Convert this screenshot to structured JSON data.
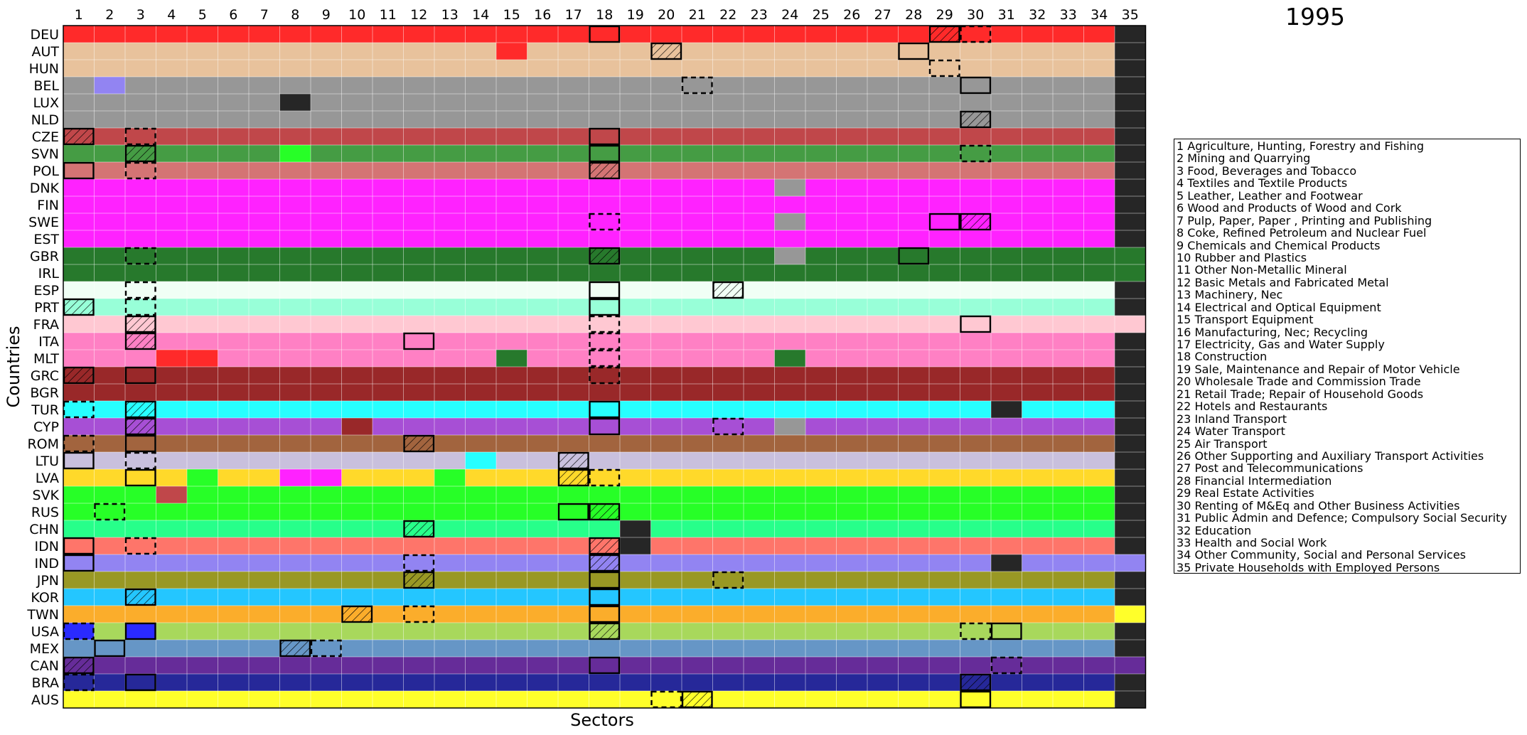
{
  "chart_data": {
    "type": "heatmap",
    "title": "1995",
    "xlabel": "Sectors",
    "ylabel": "Countries",
    "x": [
      "1",
      "2",
      "3",
      "4",
      "5",
      "6",
      "7",
      "8",
      "9",
      "10",
      "11",
      "12",
      "13",
      "14",
      "15",
      "16",
      "17",
      "18",
      "19",
      "20",
      "21",
      "22",
      "23",
      "24",
      "25",
      "26",
      "27",
      "28",
      "29",
      "30",
      "31",
      "32",
      "33",
      "34",
      "35"
    ],
    "y": [
      "DEU",
      "AUT",
      "HUN",
      "BEL",
      "LUX",
      "NLD",
      "CZE",
      "SVN",
      "POL",
      "DNK",
      "FIN",
      "SWE",
      "EST",
      "GBR",
      "IRL",
      "ESP",
      "PRT",
      "FRA",
      "ITA",
      "MLT",
      "GRC",
      "BGR",
      "TUR",
      "CYP",
      "ROM",
      "LTU",
      "LVA",
      "SVK",
      "RUS",
      "CHN",
      "IDN",
      "IND",
      "JPN",
      "KOR",
      "TWN",
      "USA",
      "MEX",
      "CAN",
      "BRA",
      "AUS"
    ],
    "color_scale": "country",
    "grid": true,
    "palette": {
      "DEU": "#ff2a2a",
      "AUT": "#e8c29c",
      "HUN": "#e8c29c",
      "BEL": "#979797",
      "LUX": "#979797",
      "NLD": "#979797",
      "CZE": "#c0474a",
      "SVN": "#459c44",
      "POL": "#d47474",
      "DNK": "#ff22ff",
      "FIN": "#ff22ff",
      "SWE": "#ff22ff",
      "EST": "#ff22ff",
      "GBR": "#27792c",
      "IRL": "#27792c",
      "ESP": "#f0fff5",
      "PRT": "#98ffd8",
      "FRA": "#ffc8d2",
      "ITA": "#ff80c4",
      "MLT": "#ff80c4",
      "GRC": "#992829",
      "BGR": "#992829",
      "TUR": "#27ffff",
      "CYP": "#a74fd5",
      "ROM": "#a2643e",
      "LTU": "#c9c0dd",
      "LVA": "#ffd92a",
      "SVK": "#27ff27",
      "RUS": "#27ff27",
      "CHN": "#27ff8a",
      "IDN": "#fe756a",
      "IND": "#9284f2",
      "JPN": "#999824",
      "KOR": "#24c6ff",
      "TWN": "#fbad2b",
      "USA": "#a8d85c",
      "MEX": "#6696c6",
      "CAN": "#662c99",
      "BRA": "#262899",
      "AUS": "#ffff2a",
      "dark": "#262626",
      "light_blue": "#9284f2",
      "lime": "#27ff27",
      "magenta": "#ff22ff",
      "red": "#ff2a2a",
      "green": "#27792c",
      "brown": "#992829",
      "grey": "#979797",
      "yellow": "#ffff2a",
      "cyan": "#27ffff",
      "crimson": "#c0474a",
      "blue": "#2a2aff"
    },
    "cells": [
      {
        "row": "DEU",
        "fill": {
          "35": "dark"
        },
        "solid": [
          18
        ],
        "hatch": [
          29
        ],
        "dashed": [
          30
        ]
      },
      {
        "row": "AUT",
        "fill": {
          "15": "red",
          "35": "dark"
        },
        "solid": [
          28
        ],
        "hatch": [
          20
        ],
        "dashed": []
      },
      {
        "row": "HUN",
        "fill": {
          "35": "dark"
        },
        "solid": [],
        "hatch": [],
        "dashed": [
          29
        ]
      },
      {
        "row": "BEL",
        "fill": {
          "2": "light_blue",
          "35": "dark"
        },
        "solid": [
          30
        ],
        "hatch": [],
        "dashed": [
          21
        ]
      },
      {
        "row": "LUX",
        "fill": {
          "8": "dark",
          "35": "dark"
        },
        "solid": [],
        "hatch": [],
        "dashed": []
      },
      {
        "row": "NLD",
        "fill": {
          "35": "dark"
        },
        "solid": [],
        "hatch": [
          30
        ],
        "dashed": []
      },
      {
        "row": "CZE",
        "fill": {
          "35": "dark"
        },
        "solid": [
          18
        ],
        "hatch": [
          1
        ],
        "dashed": [
          3
        ]
      },
      {
        "row": "SVN",
        "fill": {
          "8": "lime",
          "35": "dark"
        },
        "solid": [
          18
        ],
        "hatch": [
          3
        ],
        "dashed": [
          30
        ]
      },
      {
        "row": "POL",
        "fill": {
          "35": "dark"
        },
        "solid": [
          1
        ],
        "hatch": [
          18
        ],
        "dashed": [
          3
        ]
      },
      {
        "row": "DNK",
        "fill": {
          "24": "grey",
          "35": "dark"
        },
        "solid": [],
        "hatch": [],
        "dashed": []
      },
      {
        "row": "FIN",
        "fill": {
          "35": "dark"
        },
        "solid": [],
        "hatch": [],
        "dashed": []
      },
      {
        "row": "SWE",
        "fill": {
          "24": "grey",
          "35": "dark"
        },
        "solid": [
          29
        ],
        "hatch": [
          30
        ],
        "dashed": [
          18
        ]
      },
      {
        "row": "EST",
        "fill": {
          "35": "dark"
        },
        "solid": [],
        "hatch": [],
        "dashed": []
      },
      {
        "row": "GBR",
        "fill": {
          "24": "grey",
          "35": "green"
        },
        "solid": [
          28
        ],
        "hatch": [
          18
        ],
        "dashed": [
          3
        ]
      },
      {
        "row": "IRL",
        "fill": {
          "35": "green"
        },
        "solid": [],
        "hatch": [],
        "dashed": []
      },
      {
        "row": "ESP",
        "fill": {
          "35": "dark"
        },
        "solid": [
          18
        ],
        "hatch": [
          22
        ],
        "dashed": [
          3
        ]
      },
      {
        "row": "PRT",
        "fill": {
          "35": "dark"
        },
        "solid": [
          18
        ],
        "hatch": [
          1
        ],
        "dashed": [
          3
        ]
      },
      {
        "row": "FRA",
        "fill": {},
        "solid": [
          30
        ],
        "hatch": [
          3
        ],
        "dashed": [
          18
        ]
      },
      {
        "row": "ITA",
        "fill": {
          "35": "dark"
        },
        "solid": [
          12
        ],
        "hatch": [
          3
        ],
        "dashed": [
          18
        ]
      },
      {
        "row": "MLT",
        "fill": {
          "4": "red",
          "5": "red",
          "15": "green",
          "24": "green",
          "35": "dark"
        },
        "solid": [],
        "hatch": [],
        "dashed": [
          18
        ]
      },
      {
        "row": "GRC",
        "fill": {
          "35": "dark"
        },
        "solid": [
          3
        ],
        "hatch": [
          1
        ],
        "dashed": [
          18
        ]
      },
      {
        "row": "BGR",
        "fill": {
          "35": "dark"
        },
        "solid": [],
        "hatch": [],
        "dashed": []
      },
      {
        "row": "TUR",
        "fill": {
          "31": "dark",
          "35": "dark"
        },
        "solid": [
          18
        ],
        "hatch": [
          3
        ],
        "dashed": [
          1
        ]
      },
      {
        "row": "CYP",
        "fill": {
          "10": "brown",
          "24": "grey",
          "35": "dark"
        },
        "solid": [
          18
        ],
        "hatch": [
          3
        ],
        "dashed": [
          22
        ]
      },
      {
        "row": "ROM",
        "fill": {
          "35": "dark"
        },
        "solid": [
          3
        ],
        "hatch": [
          12
        ],
        "dashed": [
          1
        ]
      },
      {
        "row": "LTU",
        "fill": {
          "14": "cyan",
          "35": "dark"
        },
        "solid": [
          1
        ],
        "hatch": [
          17
        ],
        "dashed": [
          3
        ]
      },
      {
        "row": "LVA",
        "fill": {
          "5": "lime",
          "8": "magenta",
          "9": "magenta",
          "13": "lime",
          "35": "dark"
        },
        "solid": [
          3
        ],
        "hatch": [
          17
        ],
        "dashed": [
          18
        ]
      },
      {
        "row": "SVK",
        "fill": {
          "4": "crimson",
          "35": "dark"
        },
        "solid": [],
        "hatch": [],
        "dashed": []
      },
      {
        "row": "RUS",
        "fill": {
          "35": "dark"
        },
        "solid": [
          17
        ],
        "hatch": [
          18
        ],
        "dashed": [
          2
        ]
      },
      {
        "row": "CHN",
        "fill": {
          "19": "dark",
          "35": "dark"
        },
        "solid": [],
        "hatch": [
          12
        ],
        "dashed": []
      },
      {
        "row": "IDN",
        "fill": {
          "19": "dark",
          "35": "dark"
        },
        "solid": [
          1
        ],
        "hatch": [
          18
        ],
        "dashed": [
          3
        ]
      },
      {
        "row": "IND",
        "fill": {
          "31": "dark"
        },
        "solid": [
          1
        ],
        "hatch": [
          18
        ],
        "dashed": [
          12
        ]
      },
      {
        "row": "JPN",
        "fill": {
          "35": "dark"
        },
        "solid": [
          18
        ],
        "hatch": [
          12
        ],
        "dashed": [
          22
        ]
      },
      {
        "row": "KOR",
        "fill": {
          "35": "dark"
        },
        "solid": [
          18
        ],
        "hatch": [
          3
        ],
        "dashed": []
      },
      {
        "row": "TWN",
        "fill": {
          "35": "yellow"
        },
        "solid": [
          18
        ],
        "hatch": [
          10
        ],
        "dashed": [
          12
        ]
      },
      {
        "row": "USA",
        "fill": {
          "1": "blue",
          "3": "blue",
          "35": "dark"
        },
        "solid": [
          3,
          31
        ],
        "hatch": [
          18
        ],
        "dashed": [
          1,
          30
        ]
      },
      {
        "row": "MEX",
        "fill": {
          "35": "dark"
        },
        "solid": [
          2
        ],
        "hatch": [
          8
        ],
        "dashed": [
          9
        ]
      },
      {
        "row": "CAN",
        "fill": {},
        "solid": [
          18
        ],
        "hatch": [
          1
        ],
        "dashed": [
          31
        ]
      },
      {
        "row": "BRA",
        "fill": {
          "35": "dark"
        },
        "solid": [
          3
        ],
        "hatch": [
          30
        ],
        "dashed": [
          1
        ]
      },
      {
        "row": "AUS",
        "fill": {
          "35": "dark"
        },
        "solid": [
          30
        ],
        "hatch": [
          21
        ],
        "dashed": [
          20
        ]
      }
    ]
  },
  "legend": {
    "items": [
      "1 Agriculture, Hunting, Forestry and Fishing",
      "2 Mining and Quarrying",
      "3 Food, Beverages and Tobacco",
      "4 Textiles and Textile Products",
      "5 Leather, Leather and Footwear",
      "6 Wood and Products of Wood and Cork",
      "7 Pulp, Paper, Paper , Printing and Publishing",
      "8 Coke, Refined Petroleum and Nuclear Fuel",
      "9 Chemicals and Chemical Products",
      "10 Rubber and Plastics",
      "11 Other Non-Metallic Mineral",
      "12 Basic Metals and Fabricated Metal",
      "13 Machinery, Nec",
      "14 Electrical and Optical Equipment",
      "15 Transport Equipment",
      "16 Manufacturing, Nec; Recycling",
      "17 Electricity, Gas and Water Supply",
      "18 Construction",
      "19 Sale, Maintenance and Repair of Motor Vehicle",
      "20 Wholesale Trade and Commission Trade",
      "21 Retail Trade; Repair of Household Goods",
      "22 Hotels and Restaurants",
      "23 Inland Transport",
      "24 Water Transport",
      "25 Air Transport",
      "26 Other Supporting and Auxiliary Transport Activities",
      "27 Post and Telecommunications",
      "28 Financial Intermediation",
      "29 Real Estate Activities",
      "30 Renting of M&Eq and Other Business Activities",
      "31 Public Admin and Defence; Compulsory Social Security",
      "32 Education",
      "33 Health and Social Work",
      "34 Other Community, Social and Personal Services",
      "35 Private Households with Employed Persons"
    ]
  }
}
